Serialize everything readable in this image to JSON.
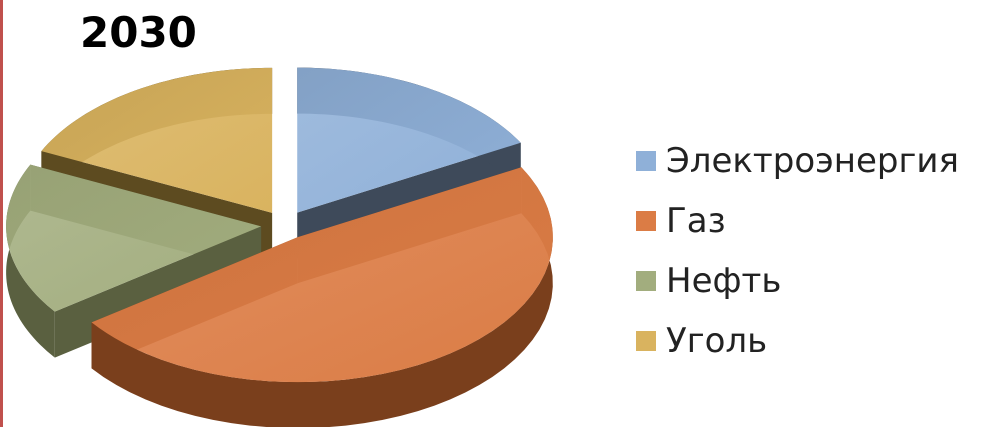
{
  "chart_data": {
    "type": "pie",
    "title": "2030",
    "categories": [
      "Электроэнергия",
      "Газ",
      "Нефть",
      "Уголь"
    ],
    "values": [
      17,
      48,
      17,
      18
    ],
    "colors": [
      "#8fb0d8",
      "#db7c45",
      "#a2ad7e",
      "#d9b35f"
    ],
    "side_colors": [
      "#3e4a5a",
      "#7a3f1c",
      "#5a6040",
      "#5d4b20"
    ],
    "exploded": true,
    "three_d": true,
    "legend_position": "right"
  }
}
